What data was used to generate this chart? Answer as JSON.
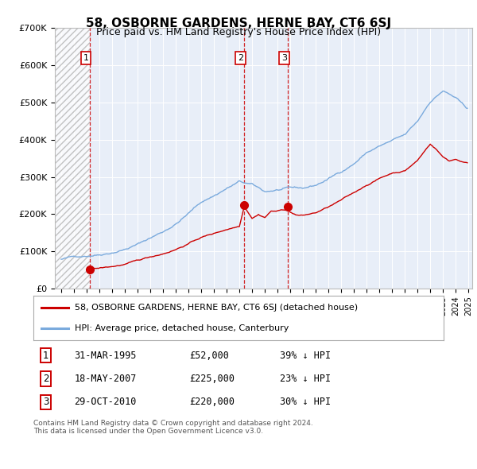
{
  "title": "58, OSBORNE GARDENS, HERNE BAY, CT6 6SJ",
  "subtitle": "Price paid vs. HM Land Registry's House Price Index (HPI)",
  "transactions": [
    {
      "label": "1",
      "date": 1995.25,
      "price": 52000
    },
    {
      "label": "2",
      "date": 2007.38,
      "price": 225000
    },
    {
      "label": "3",
      "date": 2010.83,
      "price": 220000
    }
  ],
  "transaction_table": [
    {
      "num": "1",
      "date": "31-MAR-1995",
      "price": "£52,000",
      "hpi": "39% ↓ HPI"
    },
    {
      "num": "2",
      "date": "18-MAY-2007",
      "price": "£225,000",
      "hpi": "23% ↓ HPI"
    },
    {
      "num": "3",
      "date": "29-OCT-2010",
      "price": "£220,000",
      "hpi": "30% ↓ HPI"
    }
  ],
  "footer": "Contains HM Land Registry data © Crown copyright and database right 2024.\nThis data is licensed under the Open Government Licence v3.0.",
  "legend_property": "58, OSBORNE GARDENS, HERNE BAY, CT6 6SJ (detached house)",
  "legend_hpi": "HPI: Average price, detached house, Canterbury",
  "ylim": [
    0,
    700000
  ],
  "price_color": "#cc0000",
  "hpi_color": "#7aaadd",
  "vline_color": "#cc0000",
  "background_color": "#e8eef8",
  "label_box_color": "#cc0000"
}
